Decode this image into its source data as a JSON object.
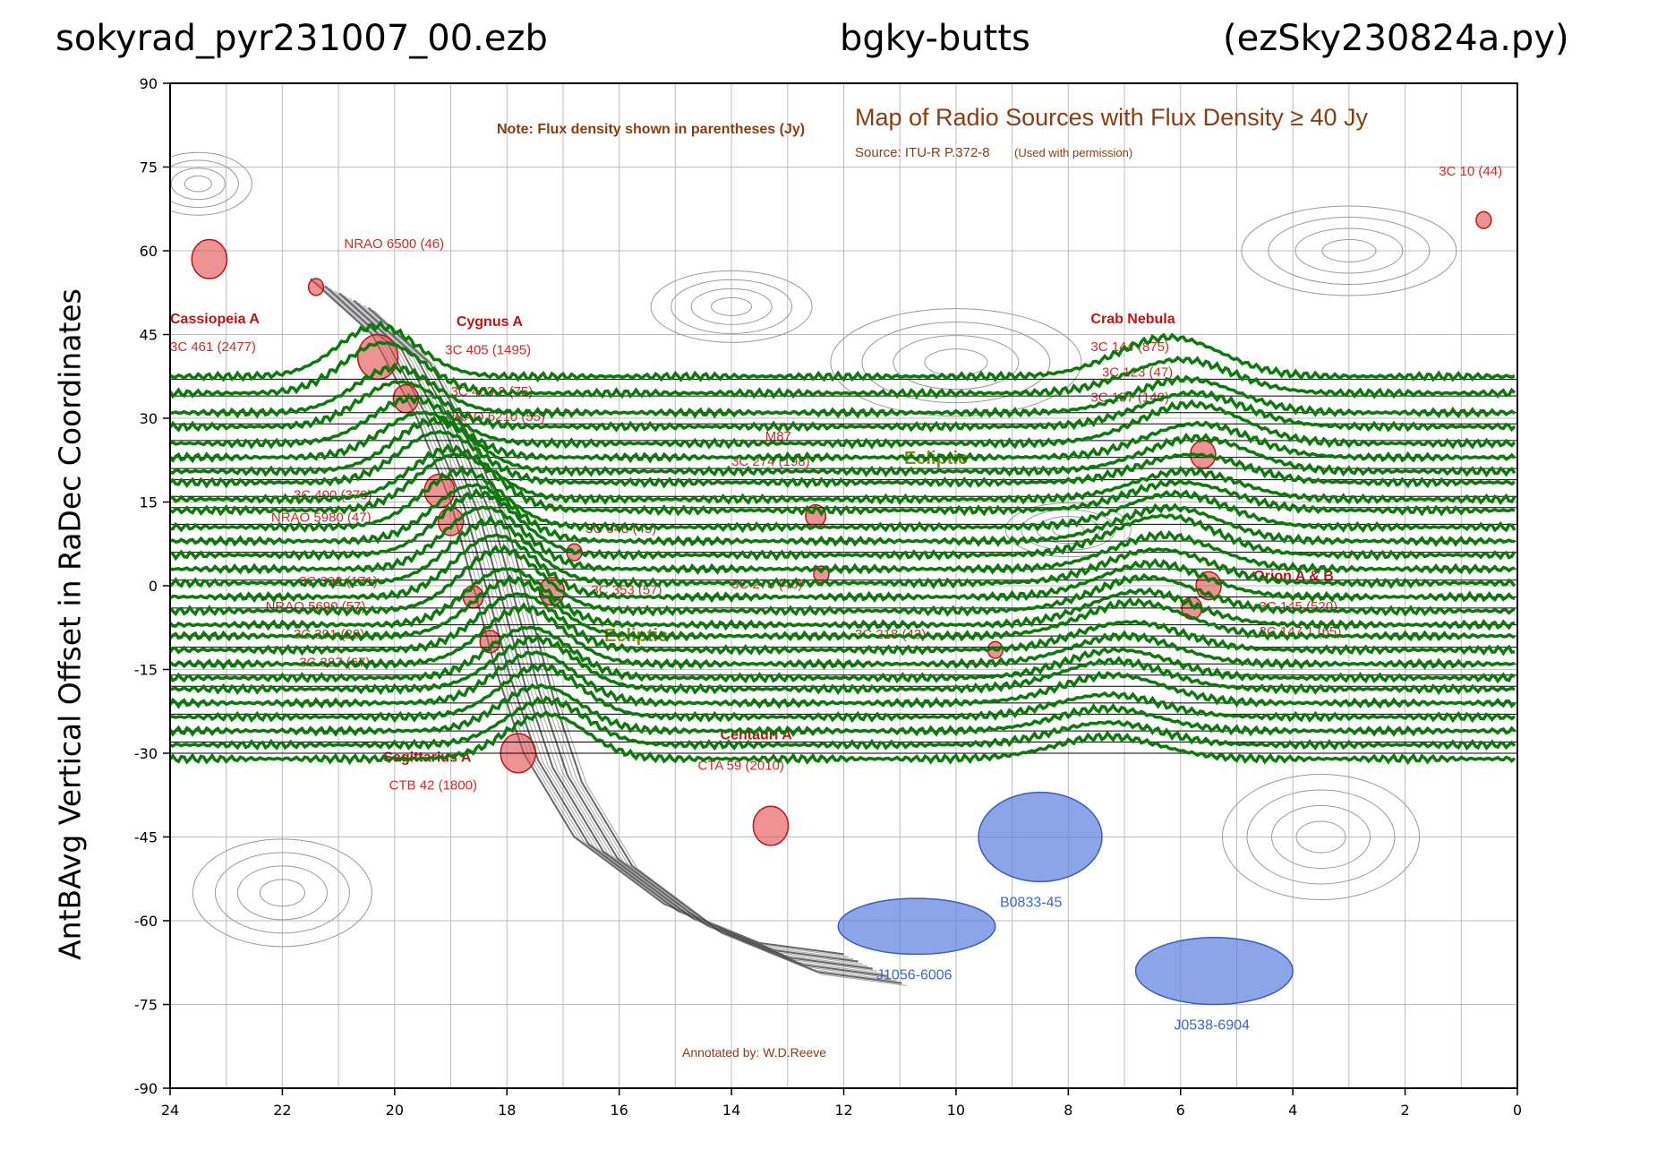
{
  "header": {
    "left": "sokyrad_pyr231007_00.ezb",
    "middle": "bgky-butts",
    "right": "(ezSky230824a.py)"
  },
  "chart_data": {
    "type": "line",
    "ylabel": "AntBAvg Vertical Offset in RaDec Coordinates",
    "xlabel": "",
    "xlim": [
      24,
      0
    ],
    "ylim": [
      -90,
      90
    ],
    "x_ticks": [
      24,
      22,
      20,
      18,
      16,
      14,
      12,
      10,
      8,
      6,
      4,
      2,
      0
    ],
    "y_ticks": [
      90,
      75,
      60,
      45,
      30,
      15,
      0,
      -15,
      -30,
      -45,
      -60,
      -75,
      -90
    ],
    "x_tick_labels": [
      "24",
      "22",
      "20",
      "18",
      "16",
      "14",
      "12",
      "10",
      "8",
      "6",
      "4",
      "2",
      "0"
    ],
    "y_tick_labels": [
      "90",
      "75",
      "60",
      "45",
      "30",
      "15",
      "0",
      "-15",
      "-30",
      "-45",
      "-60",
      "-75",
      "-90"
    ],
    "series_color": "#0b7a0b",
    "baseline_color": "#000000",
    "scan_baselines_dec": [
      37,
      34,
      31,
      29,
      26,
      23,
      21,
      19,
      16,
      14,
      11,
      8,
      6,
      3,
      1,
      -2,
      -4,
      -7,
      -9,
      -11,
      -14,
      -16,
      -18,
      -21,
      -23,
      -26,
      -28,
      -30
    ],
    "scans": [
      {
        "dec": 37.5,
        "peaks": [
          {
            "ra": 20.3,
            "h": 9
          },
          {
            "ra": 6.2,
            "h": 7
          }
        ]
      },
      {
        "dec": 34.5,
        "peaks": [
          {
            "ra": 20.2,
            "h": 9
          },
          {
            "ra": 6.0,
            "h": 6
          }
        ]
      },
      {
        "dec": 31.0,
        "peaks": [
          {
            "ra": 20.0,
            "h": 8
          },
          {
            "ra": 5.9,
            "h": 6
          }
        ]
      },
      {
        "dec": 28.5,
        "peaks": [
          {
            "ra": 19.9,
            "h": 8
          },
          {
            "ra": 5.8,
            "h": 6
          }
        ]
      },
      {
        "dec": 25.5,
        "peaks": [
          {
            "ra": 19.7,
            "h": 8
          },
          {
            "ra": 5.8,
            "h": 7
          }
        ]
      },
      {
        "dec": 23.0,
        "peaks": [
          {
            "ra": 19.5,
            "h": 8
          },
          {
            "ra": 5.7,
            "h": 6
          }
        ]
      },
      {
        "dec": 20.5,
        "peaks": [
          {
            "ra": 19.3,
            "h": 9
          },
          {
            "ra": 5.7,
            "h": 6
          }
        ]
      },
      {
        "dec": 18.5,
        "peaks": [
          {
            "ra": 19.2,
            "h": 9
          },
          {
            "ra": 5.8,
            "h": 5
          }
        ]
      },
      {
        "dec": 15.5,
        "peaks": [
          {
            "ra": 19.0,
            "h": 9
          },
          {
            "ra": 5.9,
            "h": 5
          }
        ]
      },
      {
        "dec": 13.5,
        "peaks": [
          {
            "ra": 18.9,
            "h": 10
          },
          {
            "ra": 6.0,
            "h": 5
          }
        ]
      },
      {
        "dec": 10.5,
        "peaks": [
          {
            "ra": 18.8,
            "h": 10
          },
          {
            "ra": 6.1,
            "h": 6
          }
        ]
      },
      {
        "dec": 8.0,
        "peaks": [
          {
            "ra": 18.6,
            "h": 10
          },
          {
            "ra": 6.2,
            "h": 6
          }
        ]
      },
      {
        "dec": 5.5,
        "peaks": [
          {
            "ra": 18.5,
            "h": 11
          },
          {
            "ra": 6.3,
            "h": 7
          }
        ]
      },
      {
        "dec": 3.0,
        "peaks": [
          {
            "ra": 18.4,
            "h": 11
          },
          {
            "ra": 6.3,
            "h": 6
          }
        ]
      },
      {
        "dec": 0.5,
        "peaks": [
          {
            "ra": 18.3,
            "h": 11
          },
          {
            "ra": 6.4,
            "h": 6
          }
        ]
      },
      {
        "dec": -2.0,
        "peaks": [
          {
            "ra": 18.2,
            "h": 11
          },
          {
            "ra": 6.5,
            "h": 6
          }
        ]
      },
      {
        "dec": -4.5,
        "peaks": [
          {
            "ra": 18.1,
            "h": 11
          },
          {
            "ra": 6.6,
            "h": 6
          }
        ]
      },
      {
        "dec": -7.0,
        "peaks": [
          {
            "ra": 18.0,
            "h": 10
          },
          {
            "ra": 6.7,
            "h": 6
          }
        ]
      },
      {
        "dec": -9.0,
        "peaks": [
          {
            "ra": 17.9,
            "h": 10
          },
          {
            "ra": 6.8,
            "h": 6
          }
        ]
      },
      {
        "dec": -11.5,
        "peaks": [
          {
            "ra": 17.8,
            "h": 10
          },
          {
            "ra": 6.9,
            "h": 5
          }
        ]
      },
      {
        "dec": -14.0,
        "peaks": [
          {
            "ra": 17.7,
            "h": 10
          },
          {
            "ra": 7.0,
            "h": 5
          }
        ]
      },
      {
        "dec": -16.5,
        "peaks": [
          {
            "ra": 17.6,
            "h": 9
          },
          {
            "ra": 7.1,
            "h": 5
          }
        ]
      },
      {
        "dec": -18.5,
        "peaks": [
          {
            "ra": 17.5,
            "h": 9
          },
          {
            "ra": 7.2,
            "h": 5
          }
        ]
      },
      {
        "dec": -21.0,
        "peaks": [
          {
            "ra": 17.5,
            "h": 9
          },
          {
            "ra": 7.2,
            "h": 5
          }
        ]
      },
      {
        "dec": -23.5,
        "peaks": [
          {
            "ra": 17.4,
            "h": 9
          },
          {
            "ra": 7.3,
            "h": 4
          }
        ]
      },
      {
        "dec": -26.0,
        "peaks": [
          {
            "ra": 17.4,
            "h": 8
          },
          {
            "ra": 7.3,
            "h": 4
          }
        ]
      },
      {
        "dec": -28.5,
        "peaks": [
          {
            "ra": 17.3,
            "h": 8
          },
          {
            "ra": 7.3,
            "h": 4
          }
        ]
      },
      {
        "dec": -31.0,
        "peaks": [
          {
            "ra": 17.3,
            "h": 8
          },
          {
            "ra": 7.3,
            "h": 4
          }
        ]
      }
    ]
  },
  "background_map": {
    "title": "Map of Radio Sources with Flux Density ≥ 40 Jy",
    "source": "Source: ITU-R P.372-8",
    "source_note": "(Used with permission)",
    "note": "Note: Flux density shown in parentheses (Jy)",
    "annotated_by": "Annotated by: W.D.Reeve",
    "ecliptic_label": "Ecliptic",
    "red_sources": [
      {
        "ra": 23.3,
        "dec": 58.5,
        "r": 3.5
      },
      {
        "ra": 21.4,
        "dec": 53.5,
        "r": 1.5
      },
      {
        "ra": 20.3,
        "dec": 41.0,
        "r": 4.0
      },
      {
        "ra": 19.8,
        "dec": 33.5,
        "r": 2.5
      },
      {
        "ra": 19.2,
        "dec": 17.0,
        "r": 3.0
      },
      {
        "ra": 19.0,
        "dec": 11.5,
        "r": 2.5
      },
      {
        "ra": 18.6,
        "dec": -2.0,
        "r": 2.0
      },
      {
        "ra": 18.3,
        "dec": -10.0,
        "r": 2.0
      },
      {
        "ra": 17.8,
        "dec": -30.0,
        "r": 3.5
      },
      {
        "ra": 17.2,
        "dec": -1.0,
        "r": 2.5
      },
      {
        "ra": 16.8,
        "dec": 6.0,
        "r": 1.5
      },
      {
        "ra": 13.3,
        "dec": -43.0,
        "r": 3.5
      },
      {
        "ra": 12.5,
        "dec": 12.5,
        "r": 2.0
      },
      {
        "ra": 12.4,
        "dec": 2.0,
        "r": 1.5
      },
      {
        "ra": 9.3,
        "dec": -11.5,
        "r": 1.5
      },
      {
        "ra": 5.6,
        "dec": 23.5,
        "r": 2.5
      },
      {
        "ra": 5.5,
        "dec": 0.0,
        "r": 2.5
      },
      {
        "ra": 5.8,
        "dec": -4.0,
        "r": 2.0
      },
      {
        "ra": 0.6,
        "dec": 65.5,
        "r": 1.5
      }
    ],
    "blue_sources": [
      {
        "ra": 10.7,
        "dec": -61.0,
        "rx": 1.4,
        "ry": 5.0,
        "label": "J1056-6006"
      },
      {
        "ra": 8.5,
        "dec": -45.0,
        "rx": 1.1,
        "ry": 8.0,
        "label": "B0833-45"
      },
      {
        "ra": 5.4,
        "dec": -69.0,
        "rx": 1.4,
        "ry": 6.0,
        "label": "J0538-6904"
      }
    ],
    "labels": [
      {
        "text": "Cassiopeia A",
        "ra": 24.0,
        "dec": 47.0,
        "style": "redb"
      },
      {
        "text": "3C 461 (2477)",
        "ra": 24.0,
        "dec": 42.0,
        "style": "red"
      },
      {
        "text": "NRAO 6500 (46)",
        "ra": 20.9,
        "dec": 60.5,
        "style": "red"
      },
      {
        "text": "Cygnus A",
        "ra": 18.9,
        "dec": 46.5,
        "style": "redb"
      },
      {
        "text": "3C 405 (1495)",
        "ra": 19.1,
        "dec": 41.5,
        "style": "red"
      },
      {
        "text": "3C 403.2 (75)",
        "ra": 19.0,
        "dec": 34.0,
        "style": "red"
      },
      {
        "text": "NRAO 6210 (55)",
        "ra": 19.1,
        "dec": 29.5,
        "style": "red"
      },
      {
        "text": "3C 400 (370)",
        "ra": 21.8,
        "dec": 15.5,
        "style": "red"
      },
      {
        "text": "NRAO 5980 (47)",
        "ra": 22.2,
        "dec": 11.5,
        "style": "red"
      },
      {
        "text": "3C 348 (45)",
        "ra": 16.6,
        "dec": 9.5,
        "style": "red"
      },
      {
        "text": "3C 392 (171)",
        "ra": 21.7,
        "dec": 0.0,
        "style": "red"
      },
      {
        "text": "3C 353 (57)",
        "ra": 16.5,
        "dec": -1.5,
        "style": "red"
      },
      {
        "text": "NRAO 5690 (57)",
        "ra": 22.3,
        "dec": -4.5,
        "style": "red"
      },
      {
        "text": "3C 391 (29)",
        "ra": 21.8,
        "dec": -9.5,
        "style": "red"
      },
      {
        "text": "3C 387 (67)",
        "ra": 21.7,
        "dec": -14.5,
        "style": "red"
      },
      {
        "text": "Sagittarius A",
        "ra": 20.2,
        "dec": -31.5,
        "style": "redb"
      },
      {
        "text": "CTB 42 (1800)",
        "ra": 20.1,
        "dec": -36.5,
        "style": "red"
      },
      {
        "text": "3C 273 (46)",
        "ra": 14.0,
        "dec": -0.5,
        "style": "red"
      },
      {
        "text": "M87",
        "ra": 13.4,
        "dec": 26.0,
        "style": "red"
      },
      {
        "text": "3C 274 (198)",
        "ra": 14.0,
        "dec": 21.5,
        "style": "red"
      },
      {
        "text": "Centauri A",
        "ra": 14.2,
        "dec": -27.5,
        "style": "redb"
      },
      {
        "text": "CTA 59 (2010)",
        "ra": 14.6,
        "dec": -33.0,
        "style": "red"
      },
      {
        "text": "3C 218 (43)",
        "ra": 11.8,
        "dec": -9.5,
        "style": "red"
      },
      {
        "text": "Crab Nebula",
        "ra": 7.6,
        "dec": 47.0,
        "style": "redb"
      },
      {
        "text": "3C 144 (875)",
        "ra": 7.6,
        "dec": 42.0,
        "style": "red"
      },
      {
        "text": "3C 123 (47)",
        "ra": 7.4,
        "dec": 37.5,
        "style": "red"
      },
      {
        "text": "3C 157 (140)",
        "ra": 7.6,
        "dec": 33.0,
        "style": "red"
      },
      {
        "text": "Orion A & B",
        "ra": 4.7,
        "dec": 1.0,
        "style": "redb"
      },
      {
        "text": "3C 145 (520)",
        "ra": 4.6,
        "dec": -4.5,
        "style": "red"
      },
      {
        "text": "3C 147.1 (65)",
        "ra": 4.6,
        "dec": -9.0,
        "style": "red"
      },
      {
        "text": "3C 10 (44)",
        "ra": 1.4,
        "dec": 73.5,
        "style": "red"
      }
    ]
  }
}
